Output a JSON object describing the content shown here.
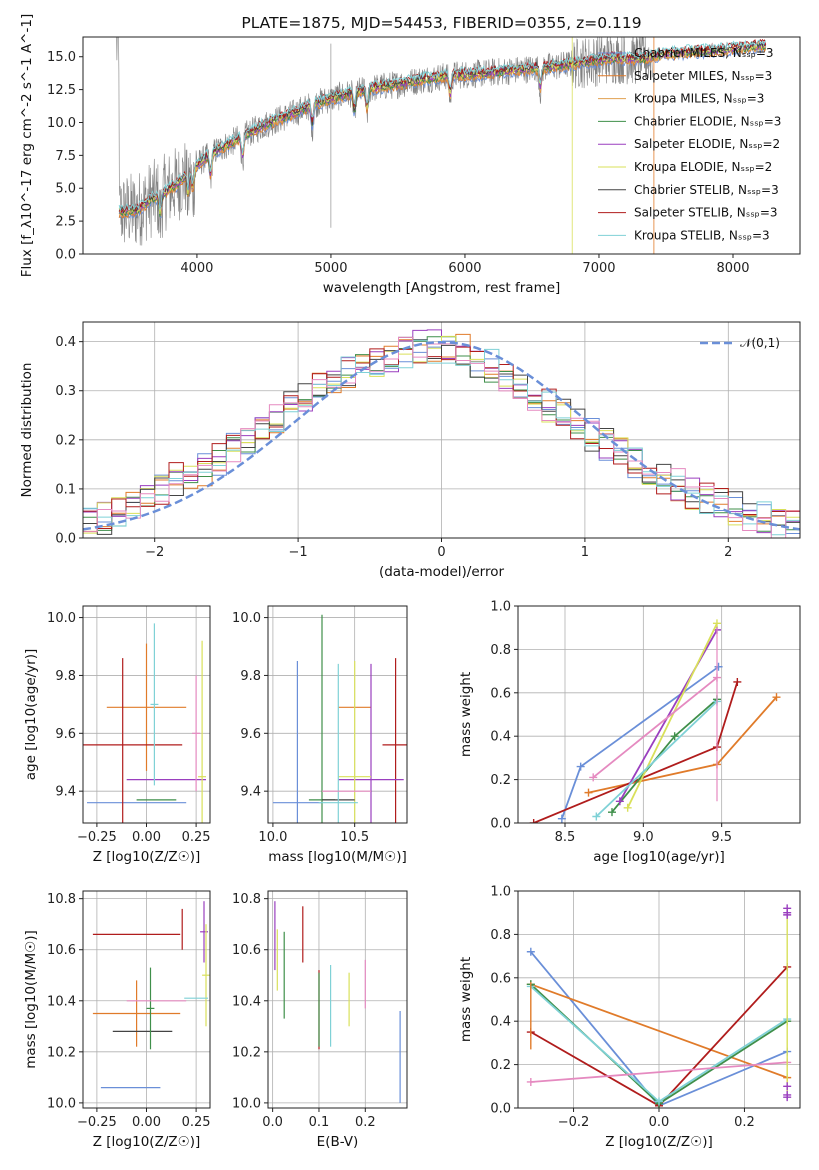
{
  "colors": {
    "chabrier_miles": "#6a8fd8",
    "salpeter_miles": "#e07b2a",
    "kroupa_miles": "#e0a050",
    "chabrier_elodie": "#3f8f4a",
    "salpeter_elodie": "#9a3fbf",
    "kroupa_elodie": "#d9e05a",
    "chabrier_stelib": "#444444",
    "salpeter_stelib": "#b01c1c",
    "kroupa_stelib": "#7fd1d6",
    "extra_pink": "#e58ac0",
    "data": "#808080",
    "normal": "#6a8fd8"
  },
  "chart_data": [
    {
      "id": "spectrum",
      "type": "line",
      "title": "PLATE=1875, MJD=54453, FIBERID=0355, z=0.119",
      "xlabel": "wavelength [Angstrom, rest frame]",
      "ylabel": "Flux [f_λ10^-17 erg cm^-2 s^-1 A^-1]",
      "xlim": [
        3150,
        8500
      ],
      "ylim": [
        0,
        16.5
      ],
      "xticks": [
        4000,
        5000,
        6000,
        7000,
        8000
      ],
      "yticks": [
        0.0,
        2.5,
        5.0,
        7.5,
        10.0,
        12.5,
        15.0
      ],
      "legend": [
        "Chabrier MILES, N_SSP=3",
        "Salpeter MILES, N_SSP=3",
        "Kroupa MILES, N_SSP=3",
        "Chabrier ELODIE, N_SSP=3",
        "Salpeter ELODIE, N_SSP=2",
        "Kroupa ELODIE, N_SSP=2",
        "Chabrier STELIB, N_SSP=3",
        "Salpeter STELIB, N_SSP=3",
        "Kroupa STELIB, N_SSP=3"
      ],
      "model_continuum": [
        [
          3420,
          3.2
        ],
        [
          3550,
          3.3
        ],
        [
          3650,
          4.1
        ],
        [
          3750,
          4.6
        ],
        [
          3850,
          5.3
        ],
        [
          3950,
          6.3
        ],
        [
          4050,
          7.2
        ],
        [
          4150,
          7.9
        ],
        [
          4300,
          8.7
        ],
        [
          4500,
          9.8
        ],
        [
          4700,
          10.6
        ],
        [
          4900,
          11.5
        ],
        [
          5100,
          12.1
        ],
        [
          5300,
          12.6
        ],
        [
          5500,
          12.9
        ],
        [
          5700,
          13.3
        ],
        [
          5900,
          13.6
        ],
        [
          6100,
          13.7
        ],
        [
          6300,
          13.9
        ],
        [
          6500,
          14.1
        ],
        [
          6700,
          14.3
        ],
        [
          6900,
          14.6
        ],
        [
          7100,
          14.9
        ],
        [
          7300,
          14.8
        ],
        [
          7500,
          15.2
        ],
        [
          7700,
          15.4
        ],
        [
          7900,
          15.5
        ],
        [
          8100,
          15.7
        ],
        [
          8250,
          15.9
        ]
      ],
      "data_range": [
        3400,
        7400
      ]
    },
    {
      "id": "residuals",
      "type": "line",
      "xlabel": "(data-model)/error",
      "ylabel": "Normed distribution",
      "xlim": [
        -2.5,
        2.5
      ],
      "ylim": [
        0,
        0.44
      ],
      "xticks": [
        -2,
        -1,
        0,
        1,
        2
      ],
      "yticks": [
        0.0,
        0.1,
        0.2,
        0.3,
        0.4
      ],
      "legend": [
        "𝒩(0,1)"
      ],
      "bins": [
        -2.5,
        -2.4,
        -2.3,
        -2.2,
        -2.1,
        -2.0,
        -1.9,
        -1.8,
        -1.7,
        -1.6,
        -1.5,
        -1.4,
        -1.3,
        -1.2,
        -1.1,
        -1.0,
        -0.9,
        -0.8,
        -0.7,
        -0.6,
        -0.5,
        -0.4,
        -0.3,
        -0.2,
        -0.1,
        0.0,
        0.1,
        0.2,
        0.3,
        0.4,
        0.5,
        0.6,
        0.7,
        0.8,
        0.9,
        1.0,
        1.1,
        1.2,
        1.3,
        1.4,
        1.5,
        1.6,
        1.7,
        1.8,
        1.9,
        2.0,
        2.1,
        2.2,
        2.3,
        2.4
      ],
      "hist_base": [
        0.03,
        0.04,
        0.05,
        0.07,
        0.08,
        0.1,
        0.12,
        0.13,
        0.14,
        0.16,
        0.18,
        0.2,
        0.22,
        0.24,
        0.27,
        0.29,
        0.31,
        0.33,
        0.34,
        0.35,
        0.36,
        0.37,
        0.38,
        0.39,
        0.39,
        0.39,
        0.38,
        0.36,
        0.35,
        0.33,
        0.31,
        0.29,
        0.27,
        0.25,
        0.23,
        0.21,
        0.19,
        0.17,
        0.15,
        0.14,
        0.12,
        0.11,
        0.09,
        0.08,
        0.07,
        0.06,
        0.05,
        0.04,
        0.03,
        0.03
      ]
    },
    {
      "id": "age-vs-Z",
      "type": "scatter",
      "xlabel": "Z [log10(Z/Z☉)]",
      "ylabel": "age [log10(age/yr)]",
      "xlim": [
        -0.32,
        0.32
      ],
      "ylim": [
        9.29,
        10.04
      ],
      "xticks": [
        -0.25,
        0.0,
        0.25
      ],
      "yticks": [
        9.4,
        9.6,
        9.8,
        10.0
      ],
      "points": [
        {
          "c": "chabrier_miles",
          "x": -0.05,
          "y": 9.36,
          "xerr": 0.25,
          "yerr": 0.0
        },
        {
          "c": "salpeter_miles",
          "x": 0.0,
          "y": 9.69,
          "xerr": 0.2,
          "yerr": 0.22
        },
        {
          "c": "chabrier_elodie",
          "x": 0.05,
          "y": 9.37,
          "xerr": 0.1,
          "yerr": 0.0
        },
        {
          "c": "salpeter_stelib",
          "x": -0.12,
          "y": 9.56,
          "xerr": 0.3,
          "yerr": 0.3
        },
        {
          "c": "salpeter_elodie",
          "x": 0.1,
          "y": 9.44,
          "xerr": 0.2,
          "yerr": 0.0
        },
        {
          "c": "kroupa_elodie",
          "x": 0.28,
          "y": 9.45,
          "xerr": 0.02,
          "yerr": 0.47
        },
        {
          "c": "kroupa_stelib",
          "x": 0.04,
          "y": 9.7,
          "xerr": 0.02,
          "yerr": 0.28
        },
        {
          "c": "extra_pink",
          "x": 0.25,
          "y": 9.6,
          "xerr": 0.02,
          "yerr": 0.2
        }
      ]
    },
    {
      "id": "age-vs-mass",
      "type": "scatter",
      "xlabel": "mass [log10(M/M☉)]",
      "ylabel": "",
      "xlim": [
        9.97,
        10.82
      ],
      "ylim": [
        9.29,
        10.04
      ],
      "xticks": [
        10.0,
        10.5
      ],
      "yticks": [
        9.4,
        9.6,
        9.8,
        10.0
      ]
    },
    {
      "id": "massweight-vs-age",
      "type": "line",
      "xlabel": "age [log10(age/yr)]",
      "ylabel": "mass weight",
      "xlim": [
        8.2,
        10.0
      ],
      "ylim": [
        0,
        1.0
      ],
      "xticks": [
        8.5,
        9.0,
        9.5
      ],
      "yticks": [
        0.0,
        0.2,
        0.4,
        0.6,
        0.8,
        1.0
      ],
      "series": [
        {
          "c": "chabrier_miles",
          "x": [
            8.48,
            8.6,
            9.48
          ],
          "y": [
            0.02,
            0.26,
            0.72
          ]
        },
        {
          "c": "salpeter_miles",
          "x": [
            8.65,
            9.47,
            9.85
          ],
          "y": [
            0.14,
            0.27,
            0.58
          ]
        },
        {
          "c": "salpeter_stelib",
          "x": [
            8.3,
            9.47,
            9.6
          ],
          "y": [
            0.0,
            0.35,
            0.65
          ]
        },
        {
          "c": "chabrier_elodie",
          "x": [
            8.8,
            9.2,
            9.47
          ],
          "y": [
            0.05,
            0.4,
            0.57
          ]
        },
        {
          "c": "salpeter_elodie",
          "x": [
            8.85,
            9.47
          ],
          "y": [
            0.1,
            0.89
          ]
        },
        {
          "c": "kroupa_elodie",
          "x": [
            8.9,
            9.47
          ],
          "y": [
            0.07,
            0.92
          ]
        },
        {
          "c": "kroupa_stelib",
          "x": [
            8.7,
            9.47
          ],
          "y": [
            0.03,
            0.56
          ]
        },
        {
          "c": "extra_pink",
          "x": [
            8.68,
            9.47
          ],
          "y": [
            0.21,
            0.67
          ]
        }
      ]
    },
    {
      "id": "mass-vs-Z",
      "type": "scatter",
      "xlabel": "Z [log10(Z/Z☉)]",
      "ylabel": "mass [log10(M/M☉)]",
      "xlim": [
        -0.32,
        0.32
      ],
      "ylim": [
        9.98,
        10.83
      ],
      "xticks": [
        -0.25,
        0.0,
        0.25
      ],
      "yticks": [
        10.0,
        10.2,
        10.4,
        10.6,
        10.8
      ]
    },
    {
      "id": "mass-vs-ebv",
      "type": "scatter",
      "xlabel": "E(B-V)",
      "ylabel": "",
      "xlim": [
        -0.01,
        0.29
      ],
      "ylim": [
        9.98,
        10.83
      ],
      "xticks": [
        0.0,
        0.1,
        0.2
      ],
      "yticks": [
        10.0,
        10.2,
        10.4,
        10.6,
        10.8
      ]
    },
    {
      "id": "massweight-vs-Z",
      "type": "line",
      "xlabel": "Z [log10(Z/Z☉)]",
      "ylabel": "mass weight",
      "xlim": [
        -0.33,
        0.33
      ],
      "ylim": [
        0,
        1.0
      ],
      "xticks": [
        -0.2,
        0.0,
        0.2
      ],
      "yticks": [
        0.0,
        0.2,
        0.4,
        0.6,
        0.8,
        1.0
      ],
      "series": [
        {
          "c": "chabrier_miles",
          "x": [
            -0.3,
            0.0,
            0.3
          ],
          "y": [
            0.72,
            0.01,
            0.26
          ]
        },
        {
          "c": "salpeter_miles",
          "x": [
            -0.3,
            0.3
          ],
          "y": [
            0.57,
            0.14
          ]
        },
        {
          "c": "salpeter_stelib",
          "x": [
            -0.3,
            0.0,
            0.3
          ],
          "y": [
            0.35,
            0.01,
            0.65
          ]
        },
        {
          "c": "chabrier_elodie",
          "x": [
            -0.3,
            0.0,
            0.3
          ],
          "y": [
            0.57,
            0.02,
            0.4
          ]
        },
        {
          "c": "kroupa_stelib",
          "x": [
            -0.3,
            0.0,
            0.3
          ],
          "y": [
            0.56,
            0.03,
            0.41
          ]
        },
        {
          "c": "extra_pink",
          "x": [
            -0.3,
            0.3
          ],
          "y": [
            0.12,
            0.21
          ]
        }
      ]
    }
  ]
}
